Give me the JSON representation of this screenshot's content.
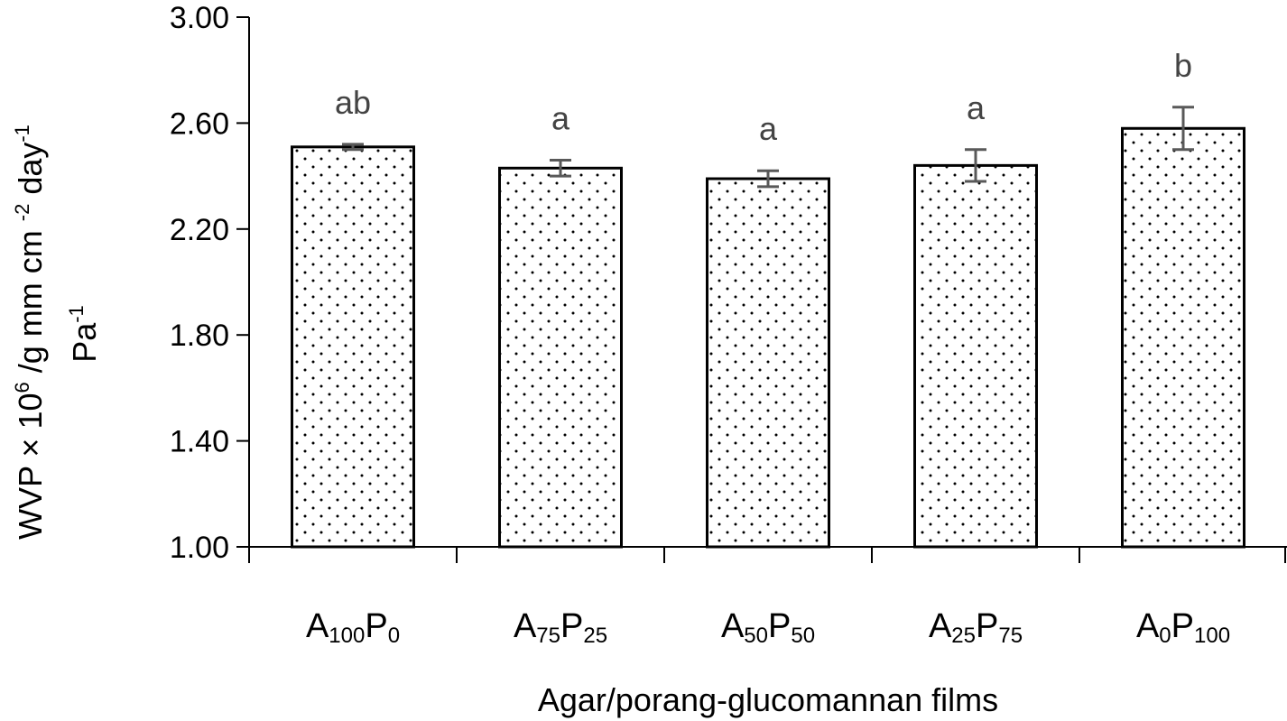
{
  "chart_data": {
    "type": "bar",
    "categories": [
      {
        "base": "A",
        "sub1": "100",
        "mid": "P",
        "sub2": "0"
      },
      {
        "base": "A",
        "sub1": "75",
        "mid": "P",
        "sub2": "25"
      },
      {
        "base": "A",
        "sub1": "50",
        "mid": "P",
        "sub2": "50"
      },
      {
        "base": "A",
        "sub1": "25",
        "mid": "P",
        "sub2": "75"
      },
      {
        "base": "A",
        "sub1": "0",
        "mid": "P",
        "sub2": "100"
      }
    ],
    "values": [
      2.51,
      2.43,
      2.39,
      2.44,
      2.58
    ],
    "errors": [
      0.01,
      0.03,
      0.03,
      0.06,
      0.08
    ],
    "significance_labels": [
      "ab",
      "a",
      "a",
      "a",
      "b"
    ],
    "xlabel": "Agar/porang-glucomannan films",
    "ylabel": {
      "line1_a": "WVP × 10",
      "line1_sup1": "6",
      "line1_b": " /g mm cm ",
      "line1_sup2": "-2",
      "line1_c": " day",
      "line1_sup3": "-1",
      "line2_a": "Pa",
      "line2_sup": "-1"
    },
    "ylim": [
      1.0,
      3.0
    ],
    "yticks": [
      "1.00",
      "1.40",
      "1.80",
      "2.20",
      "2.60",
      "3.00"
    ],
    "ytick_values": [
      1.0,
      1.4,
      1.8,
      2.2,
      2.6,
      3.0
    ],
    "bar_fill": "dotted-white",
    "grid": false,
    "legend": "none",
    "colors": {
      "bar_edge": "#000000",
      "error_bar": "#595959",
      "sig_text": "#444444"
    }
  }
}
